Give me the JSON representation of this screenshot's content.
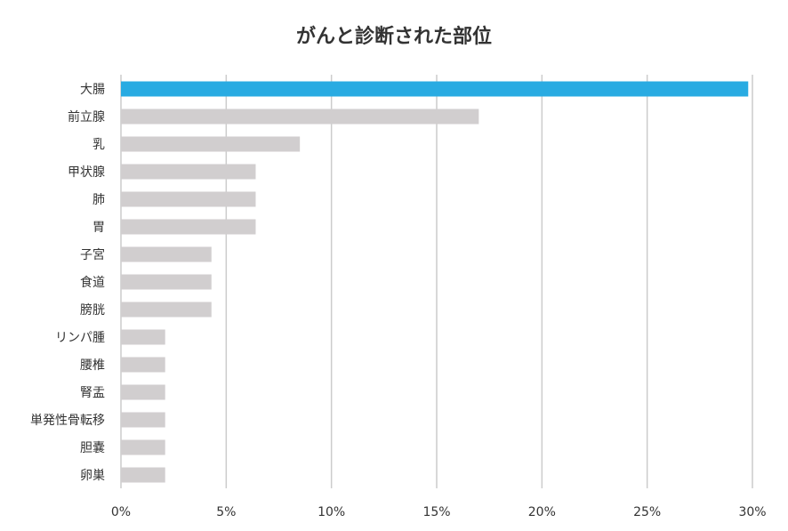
{
  "chart_data": {
    "type": "bar",
    "orientation": "horizontal",
    "title": "がんと診断された部位",
    "categories": [
      "大腸",
      "前立腺",
      "乳",
      "甲状腺",
      "肺",
      "胃",
      "子宮",
      "食道",
      "膀胱",
      "リンパ腫",
      "腰椎",
      "腎盂",
      "単発性骨転移",
      "胆嚢",
      "卵巣"
    ],
    "values": [
      29.8,
      17.0,
      8.5,
      6.4,
      6.4,
      6.4,
      4.3,
      4.3,
      4.3,
      2.1,
      2.1,
      2.1,
      2.1,
      2.1,
      2.1
    ],
    "highlight_index": 0,
    "xlim": [
      0,
      30
    ],
    "xticks": [
      0,
      5,
      10,
      15,
      20,
      25,
      30
    ],
    "xtick_labels": [
      "0%",
      "5%",
      "10%",
      "15%",
      "20%",
      "25%",
      "30%"
    ],
    "xlabel": "",
    "ylabel": "",
    "grid": "vertical",
    "colors": {
      "highlight": "#29abe2",
      "default": "#d1cecf",
      "grid": "#cccccc",
      "text": "#333333"
    }
  }
}
